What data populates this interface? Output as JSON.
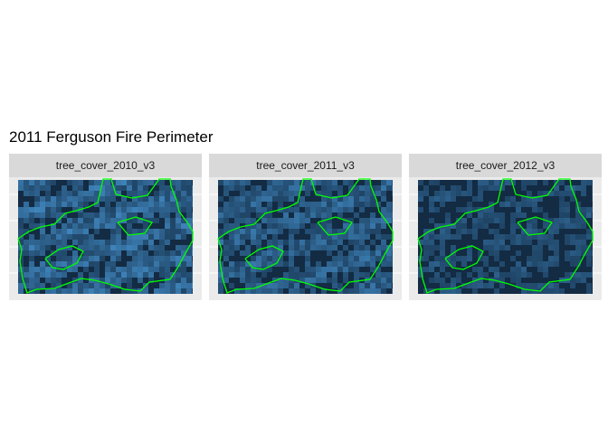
{
  "title": "2011 Ferguson Fire Perimeter",
  "colors": {
    "panel_bg": "#ebebeb",
    "strip_bg": "#d9d9d9",
    "raster_low": "#132b43",
    "raster_high": "#56b1f7",
    "perimeter": "#00ff00"
  },
  "facets": [
    {
      "label": "tree_cover_2010_v3",
      "cover_level": 0.75
    },
    {
      "label": "tree_cover_2011_v3",
      "cover_level": 0.65
    },
    {
      "label": "tree_cover_2012_v3",
      "cover_level": 0.45
    }
  ]
}
